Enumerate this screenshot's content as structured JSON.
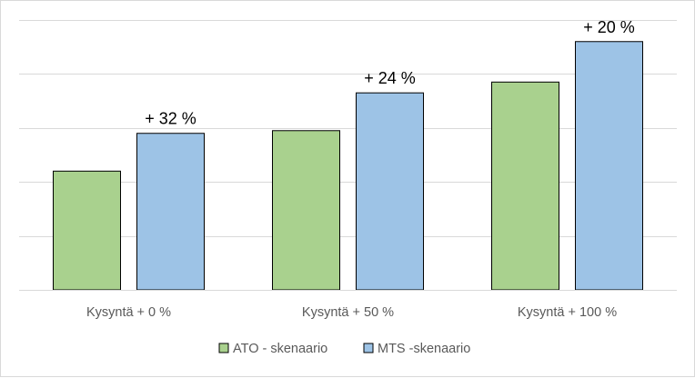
{
  "chart_data": {
    "type": "bar",
    "categories": [
      "Kysyntä + 0 %",
      "Kysyntä + 50 %",
      "Kysyntä + 100 %"
    ],
    "series": [
      {
        "name": "ATO - skenaario",
        "color": "#a9d18e",
        "values": [
          2.2,
          2.95,
          3.85
        ]
      },
      {
        "name": "MTS -skenaario",
        "color": "#9dc3e6",
        "values": [
          2.9,
          3.65,
          4.6
        ]
      }
    ],
    "data_labels": [
      "+ 32 %",
      "+ 24 %",
      "+ 20 %"
    ],
    "ylim": [
      0,
      5
    ],
    "y_tick_step": 1,
    "grid": true,
    "y_tick_labels_shown": false,
    "legend_position": "bottom",
    "title": "",
    "xlabel": "",
    "ylabel": ""
  }
}
